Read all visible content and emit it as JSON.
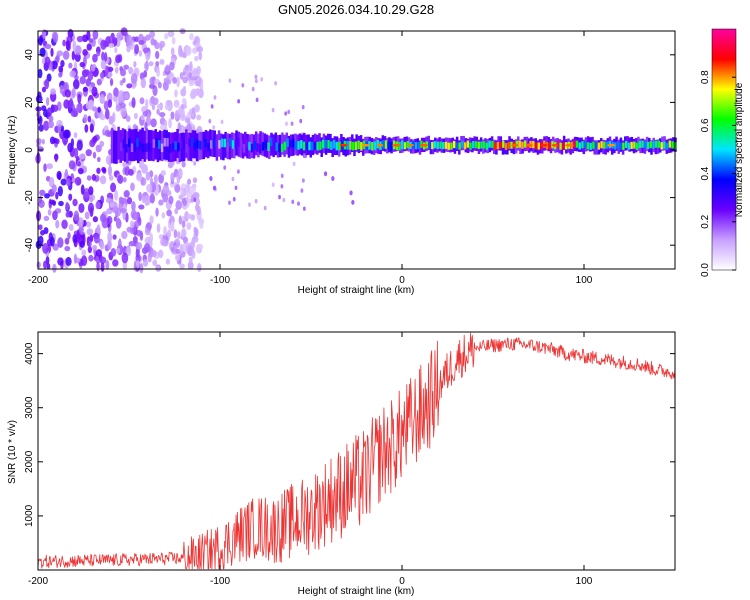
{
  "title": "GN05.2026.034.10.29.G28",
  "chart_data": [
    {
      "type": "heatmap",
      "id": "spectrogram",
      "xlabel": "Height of straight line (km)",
      "ylabel": "Frequency (Hz)",
      "xlim": [
        -200,
        150
      ],
      "ylim": [
        -50,
        50
      ],
      "x_ticks": [
        -200,
        -100,
        0,
        100
      ],
      "y_ticks": [
        -40,
        -20,
        0,
        20,
        40
      ],
      "grid": false,
      "colorbar": {
        "label": "Normalized spectral amplitude",
        "range": [
          0,
          1
        ],
        "ticks": [
          "0.0",
          "0.2",
          "0.4",
          "0.6",
          "0.8"
        ],
        "colormap": [
          "#ffffff",
          "#c8a0ff",
          "#6a00ff",
          "#0000ff",
          "#00e5ff",
          "#00ff00",
          "#ffff00",
          "#ff0000",
          "#ff00a0"
        ]
      },
      "description_signal": {
        "noise_region_x": [
          -200,
          -110
        ],
        "carrier_freq_hz": 2,
        "peak_band_x": [
          50,
          95
        ]
      }
    },
    {
      "type": "line",
      "id": "snr",
      "xlabel": "Height of straight line (km)",
      "ylabel": "SNR (10 * v/v)",
      "xlim": [
        -200,
        150
      ],
      "ylim": [
        0,
        4400
      ],
      "x_ticks": [
        -200,
        -100,
        0,
        100
      ],
      "y_ticks": [
        1000,
        2000,
        3000,
        4000
      ],
      "series": [
        {
          "name": "SNR",
          "color": "#ee3333",
          "x": [
            -200,
            -180,
            -160,
            -140,
            -120,
            -110,
            -100,
            -90,
            -80,
            -70,
            -60,
            -50,
            -40,
            -30,
            -20,
            -15,
            -10,
            -5,
            0,
            5,
            10,
            15,
            20,
            25,
            30,
            40,
            50,
            60,
            70,
            80,
            90,
            100,
            110,
            120,
            130,
            140,
            150
          ],
          "y": [
            150,
            170,
            180,
            200,
            220,
            280,
            400,
            650,
            800,
            750,
            900,
            1050,
            1300,
            1500,
            1700,
            2000,
            2200,
            2300,
            2500,
            2700,
            2900,
            3100,
            3400,
            3650,
            3900,
            4100,
            4150,
            4180,
            4160,
            4100,
            4000,
            3950,
            3900,
            3850,
            3800,
            3700,
            3650
          ]
        }
      ]
    }
  ]
}
